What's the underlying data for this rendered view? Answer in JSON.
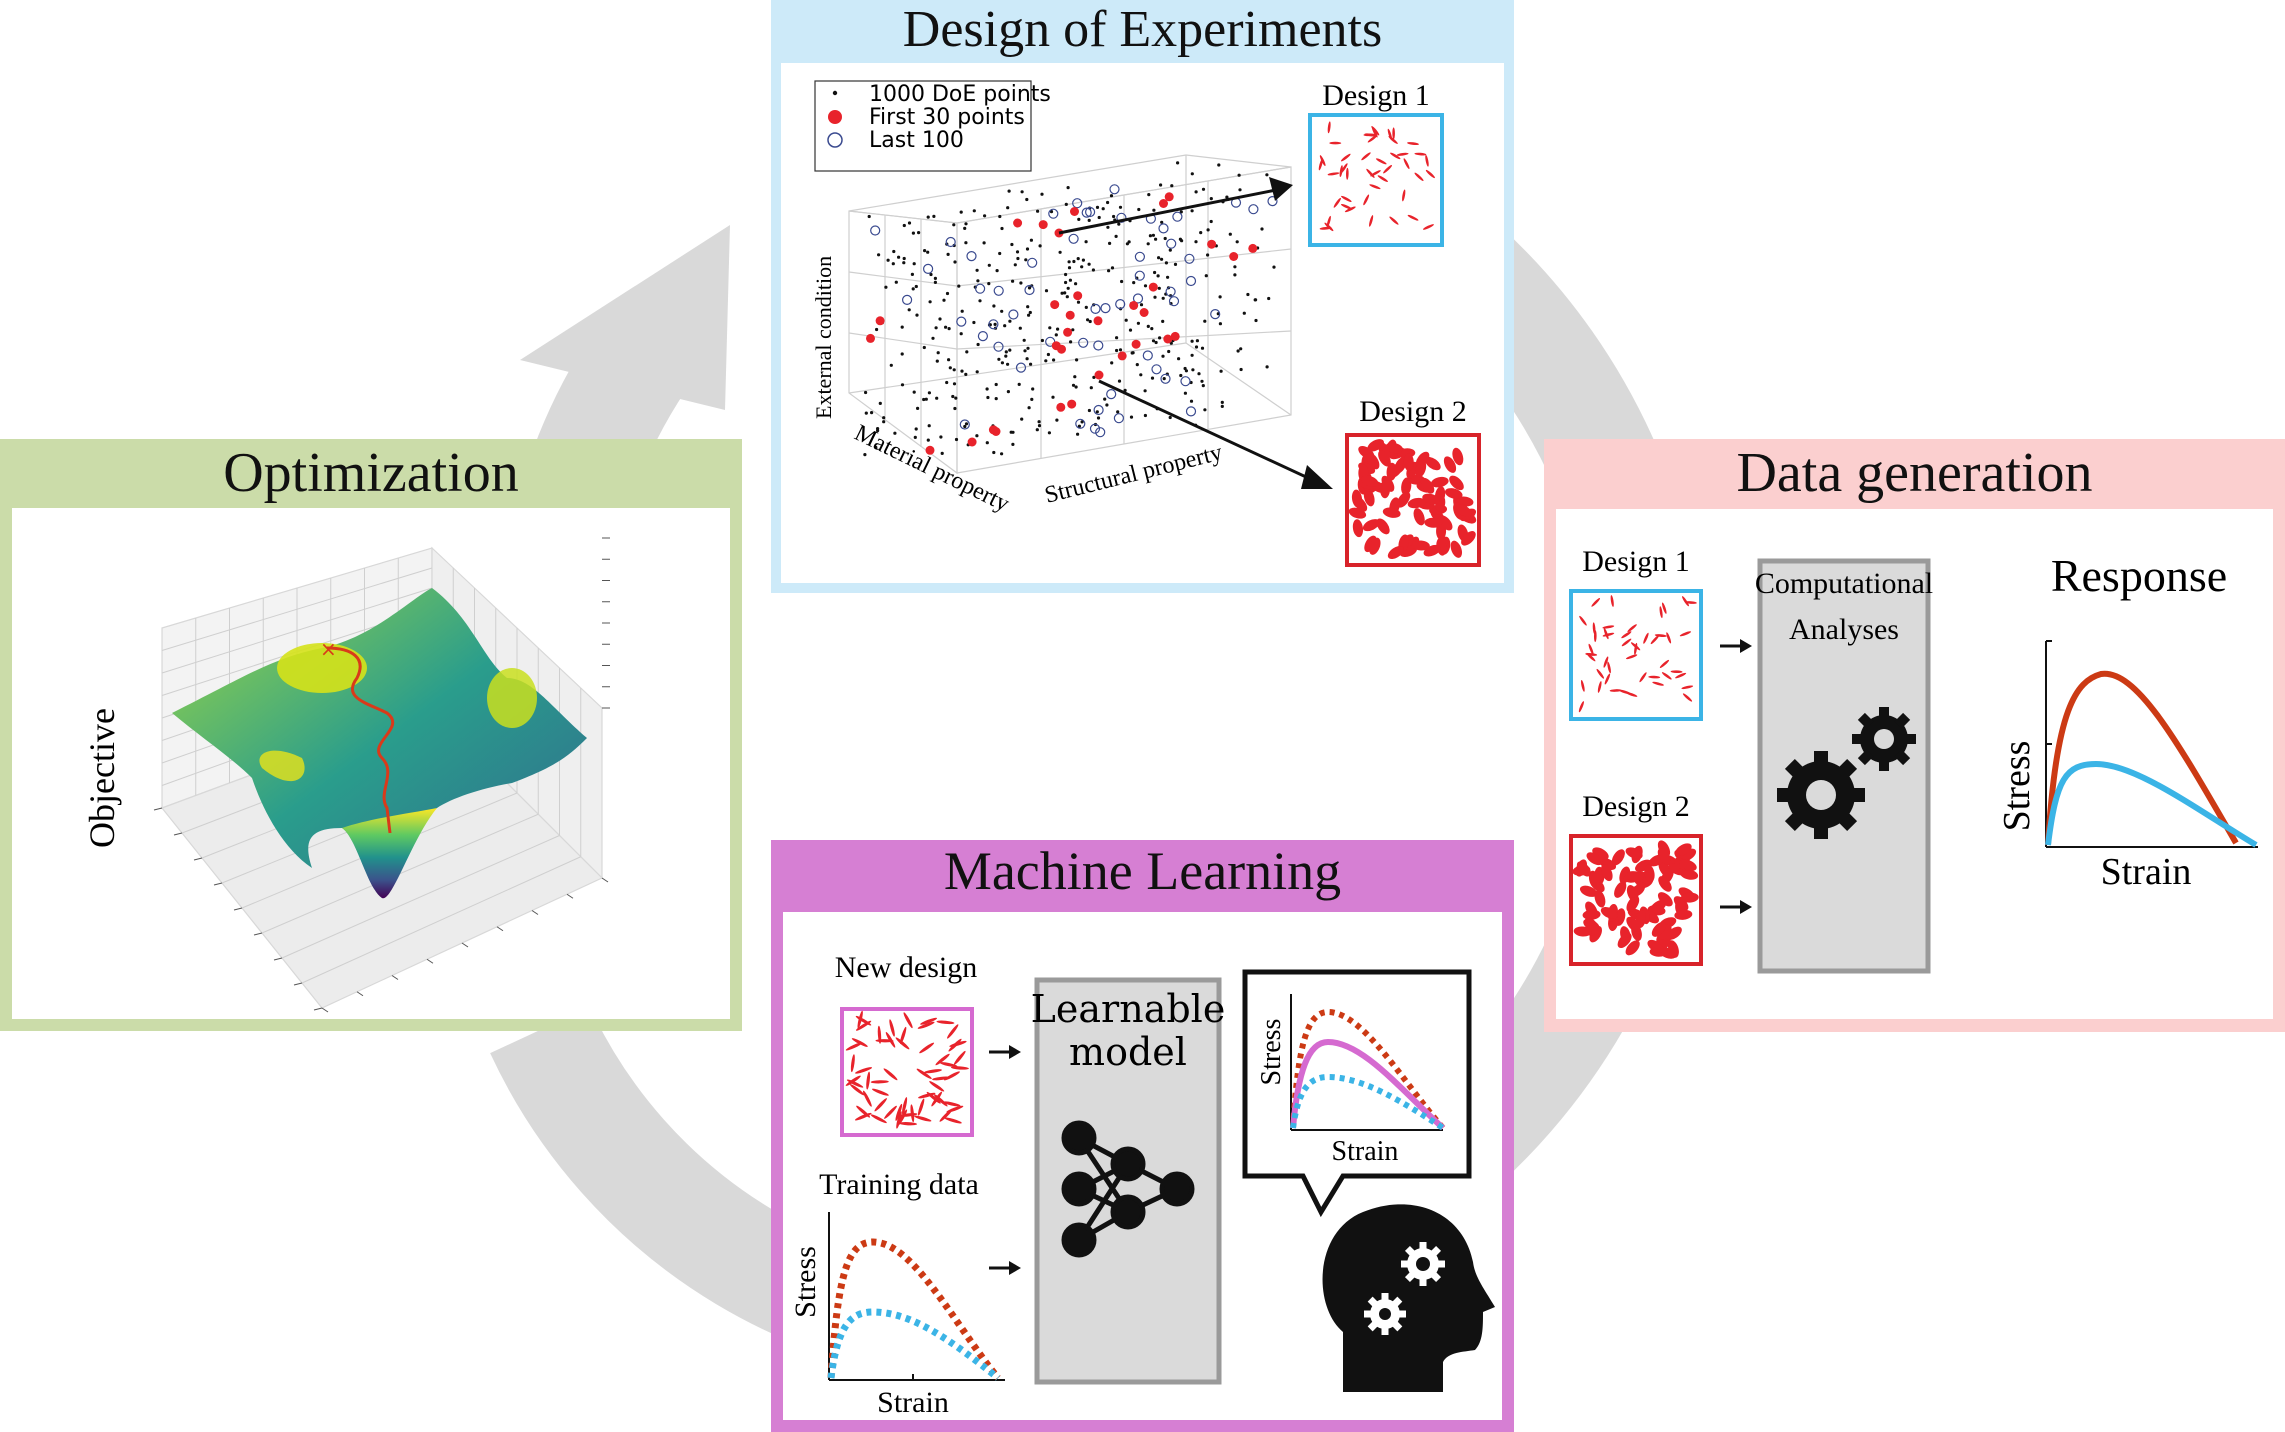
{
  "colors": {
    "doe": "#cdeaf9",
    "optimization": "#cbdca9",
    "data_generation": "#fbcfcf",
    "machine_learning": "#d67fd3",
    "cycle_arrow": "#d9d9d9",
    "fiber_red": "#e8232b",
    "curve_red": "#cc3a14",
    "curve_blue": "#3bb4e6",
    "curve_pink": "#d56ad0",
    "box_blue": "#3bb4e6",
    "box_red": "#d8232a"
  },
  "doe": {
    "title": "Design of Experiments",
    "legend": [
      "1000 DoE points",
      "First 30 points",
      "Last 100"
    ],
    "axis_z": "External condition",
    "axis_x": "Material property",
    "axis_y": "Structural property",
    "design1": "Design 1",
    "design2": "Design 2"
  },
  "optimization": {
    "title": "Optimization",
    "axis": "Objective"
  },
  "data_generation": {
    "title": "Data generation",
    "design1": "Design 1",
    "design2": "Design 2",
    "analyses_line1": "Computational",
    "analyses_line2": "Analyses",
    "response": "Response",
    "stress": "Stress",
    "strain": "Strain"
  },
  "machine_learning": {
    "title": "Machine Learning",
    "new_design": "New design",
    "training_data": "Training data",
    "model_line1": "Learnable",
    "model_line2": "model",
    "stress": "Stress",
    "strain": "Strain"
  },
  "icons": [
    "cycle-arrow-icon",
    "gears-icon",
    "neural-network-icon",
    "head-gears-icon",
    "speech-bubble-icon",
    "arrow-right-icon"
  ]
}
